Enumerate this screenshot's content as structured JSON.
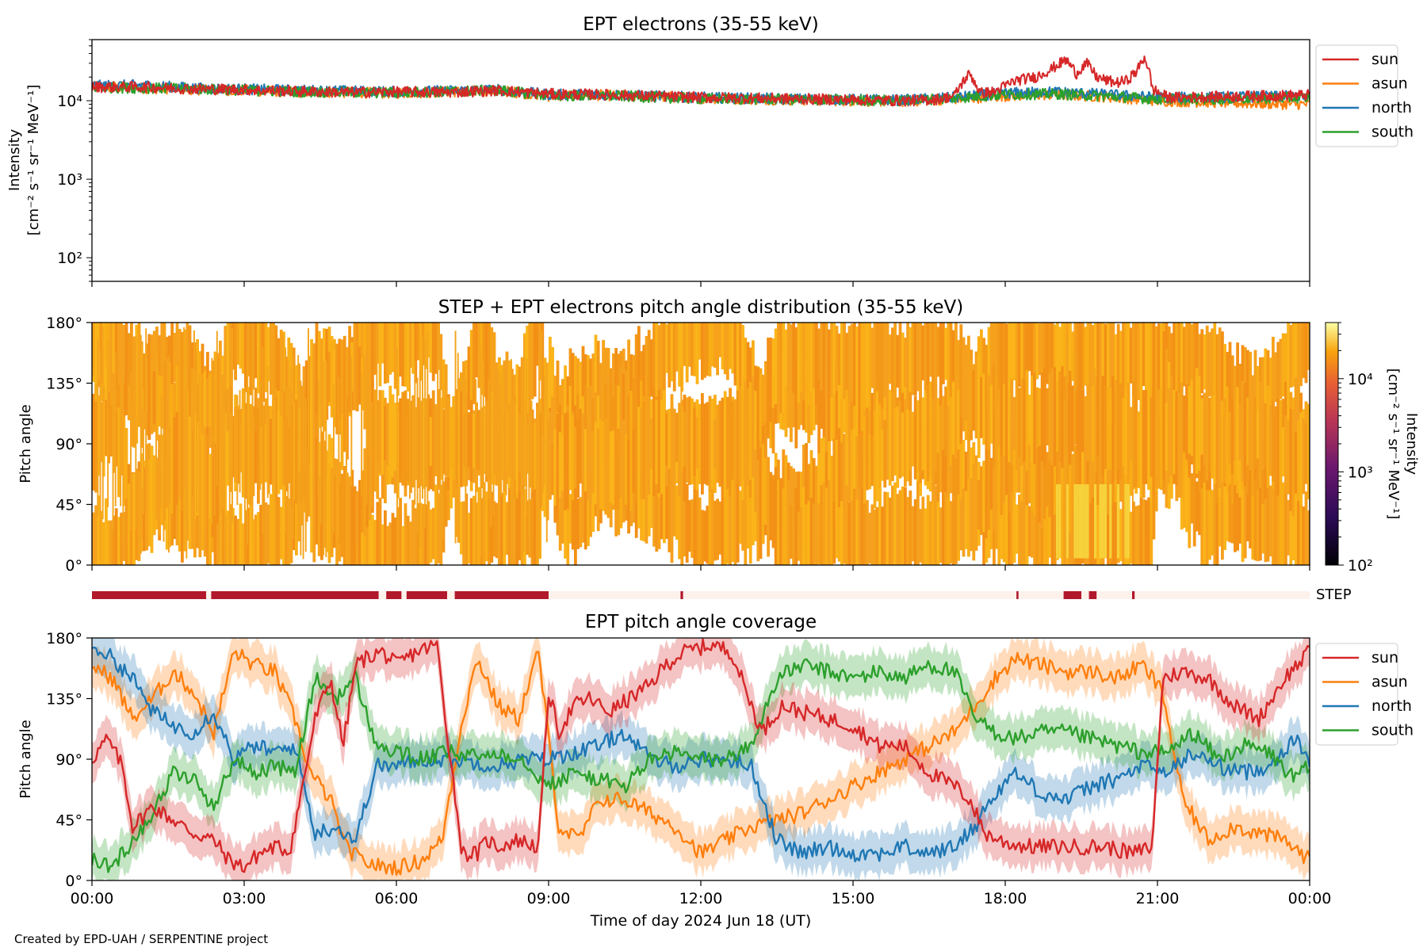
{
  "colors": {
    "sun": "#d62728",
    "asun": "#ff7f0e",
    "north": "#1f77b4",
    "south": "#2ca02c",
    "step_bar": "#b2182b",
    "step_bar_light": "#fdf1ec",
    "pad_main": "#f7a21b",
    "pad_hot": "#f7d23b"
  },
  "footer": {
    "credit": "Created by EPD-UAH / SERPENTINE project"
  },
  "chart_data": [
    {
      "type": "line",
      "title": "EPT electrons (35-55 keV)",
      "xlabel": "",
      "ylabel": [
        "Intensity",
        "[cm⁻² s⁻¹ sr⁻¹ MeV⁻¹]"
      ],
      "yscale": "log",
      "ylim": [
        50,
        60000
      ],
      "yticks": [
        {
          "value": 100,
          "label": "10²"
        },
        {
          "value": 1000,
          "label": "10³"
        },
        {
          "value": 10000,
          "label": "10⁴"
        }
      ],
      "xlim": [
        0,
        24
      ],
      "legend_position": "outside-right-top",
      "series": [
        {
          "name": "sun",
          "x": [
            0,
            1,
            2,
            3,
            4,
            5,
            6,
            7,
            8,
            9,
            10,
            11,
            12,
            13,
            14,
            15,
            16,
            16.6,
            17.0,
            17.3,
            17.5,
            17.8,
            18.2,
            18.6,
            18.9,
            19.2,
            19.4,
            19.6,
            19.8,
            20.0,
            20.2,
            20.4,
            20.6,
            20.75,
            20.9,
            21.2,
            21.5,
            22,
            23,
            24
          ],
          "values": [
            15000,
            15000,
            14200,
            13800,
            13200,
            12800,
            13000,
            12800,
            13500,
            12200,
            12000,
            11500,
            11000,
            10800,
            10500,
            10300,
            10000,
            10300,
            11500,
            22000,
            12500,
            13000,
            18000,
            20000,
            25000,
            33000,
            22000,
            30000,
            20000,
            18000,
            17000,
            18000,
            24000,
            36000,
            14000,
            11000,
            11000,
            11200,
            11500,
            11800
          ]
        },
        {
          "name": "asun",
          "x": [
            0,
            2,
            4,
            6,
            8,
            9,
            10,
            12,
            14,
            16,
            17,
            18,
            19,
            20,
            21,
            22,
            23,
            24
          ],
          "values": [
            15000,
            14000,
            13000,
            12500,
            13500,
            11500,
            11800,
            10800,
            10200,
            9800,
            10500,
            11500,
            12000,
            11200,
            10000,
            9600,
            9200,
            9000
          ]
        },
        {
          "name": "north",
          "x": [
            0,
            1,
            2,
            4,
            6,
            8,
            9,
            10,
            12,
            14,
            16,
            17,
            18,
            19,
            20,
            21,
            22,
            24
          ],
          "values": [
            15500,
            15800,
            14500,
            13600,
            13000,
            13800,
            12000,
            12000,
            11000,
            10500,
            10200,
            11000,
            12500,
            13000,
            12000,
            11000,
            11000,
            11500
          ]
        },
        {
          "name": "south",
          "x": [
            0,
            2,
            4,
            6,
            8,
            9,
            10,
            12,
            14,
            16,
            17,
            18,
            19,
            20,
            21,
            22,
            24
          ],
          "values": [
            14800,
            14200,
            13000,
            12600,
            13600,
            11600,
            11600,
            10600,
            10300,
            10000,
            10800,
            12000,
            12200,
            11400,
            10500,
            10500,
            11000
          ]
        }
      ]
    },
    {
      "type": "heatmap",
      "title": "STEP + EPT electrons pitch angle distribution (35-55 keV)",
      "ylabel": "Pitch angle",
      "ylim": [
        0,
        180
      ],
      "yticks": [
        "0°",
        "45°",
        "90°",
        "135°",
        "180°"
      ],
      "xlim": [
        0,
        24
      ],
      "colorbar": {
        "label": [
          "Intensity",
          "[cm⁻² s⁻¹ sr⁻¹ MeV⁻¹]"
        ],
        "scale": "log",
        "range": [
          100,
          40000
        ],
        "ticks": [
          {
            "value": 100,
            "label": "10²"
          },
          {
            "value": 1000,
            "label": "10³"
          },
          {
            "value": 10000,
            "label": "10⁴"
          }
        ]
      },
      "typical_intensity": 12000
    },
    {
      "type": "timeline",
      "label": "STEP",
      "xlim": [
        0,
        24
      ],
      "active_intervals": [
        [
          0,
          2.25
        ],
        [
          2.35,
          5.65
        ],
        [
          5.8,
          6.1
        ],
        [
          6.2,
          7.0
        ],
        [
          7.15,
          9.0
        ],
        [
          11.6,
          11.65
        ],
        [
          18.22,
          18.26
        ],
        [
          19.15,
          19.5
        ],
        [
          19.65,
          19.8
        ],
        [
          20.5,
          20.55
        ]
      ]
    },
    {
      "type": "line",
      "title": "EPT pitch angle coverage",
      "ylabel": "Pitch angle",
      "xlabel": "Time of day 2024 Jun 18 (UT)",
      "ylim": [
        0,
        180
      ],
      "yticks": [
        "0°",
        "45°",
        "90°",
        "135°",
        "180°"
      ],
      "xlim": [
        0,
        24
      ],
      "xticks": [
        "00:00",
        "03:00",
        "06:00",
        "09:00",
        "12:00",
        "15:00",
        "18:00",
        "21:00",
        "00:00"
      ],
      "legend_position": "outside-right-top",
      "series": [
        {
          "name": "sun",
          "x": [
            0,
            0.3,
            0.6,
            0.8,
            1.2,
            1.6,
            2.0,
            2.4,
            2.7,
            3.0,
            3.3,
            3.6,
            3.9,
            4.1,
            4.4,
            4.7,
            4.95,
            5.2,
            5.4,
            5.7,
            6.0,
            6.4,
            6.8,
            7.0,
            7.3,
            7.6,
            7.8,
            8.0,
            8.4,
            8.8,
            9.0,
            9.2,
            9.5,
            9.8,
            10.2,
            10.6,
            11.0,
            11.3,
            11.7,
            12.2,
            12.6,
            12.9,
            13.2,
            13.6,
            14.0,
            14.5,
            15.0,
            15.5,
            16.0,
            16.5,
            17.0,
            17.3,
            17.6,
            18.0,
            18.5,
            19.0,
            19.5,
            20.0,
            20.5,
            20.9,
            21.1,
            21.5,
            22.0,
            22.5,
            23.0,
            23.5,
            24.0
          ],
          "values": [
            90,
            105,
            85,
            40,
            55,
            45,
            35,
            30,
            15,
            10,
            20,
            25,
            22,
            60,
            120,
            150,
            100,
            160,
            165,
            170,
            160,
            170,
            175,
            110,
            20,
            20,
            30,
            25,
            30,
            25,
            140,
            110,
            130,
            135,
            125,
            135,
            145,
            160,
            170,
            175,
            170,
            140,
            110,
            130,
            125,
            120,
            115,
            100,
            100,
            80,
            70,
            60,
            35,
            28,
            25,
            25,
            25,
            25,
            20,
            25,
            150,
            155,
            150,
            130,
            120,
            150,
            170
          ]
        },
        {
          "name": "asun",
          "x": [
            0,
            0.4,
            0.8,
            1.2,
            1.6,
            2.0,
            2.4,
            2.8,
            3.2,
            3.6,
            4.0,
            4.3,
            4.7,
            5.0,
            5.3,
            5.7,
            6.1,
            6.5,
            6.9,
            7.3,
            7.6,
            8.0,
            8.4,
            8.8,
            9.2,
            9.6,
            10.0,
            10.5,
            11.0,
            11.5,
            12.0,
            12.5,
            13.0,
            13.5,
            14.0,
            14.5,
            15.0,
            15.5,
            16.0,
            16.5,
            17.0,
            17.4,
            17.8,
            18.2,
            18.7,
            19.2,
            19.7,
            20.2,
            20.7,
            21.1,
            21.5,
            22.0,
            22.5,
            23.0,
            23.5,
            24.0
          ],
          "values": [
            160,
            150,
            120,
            135,
            155,
            140,
            110,
            170,
            160,
            155,
            120,
            80,
            60,
            25,
            15,
            10,
            10,
            15,
            30,
            120,
            165,
            130,
            120,
            170,
            40,
            30,
            60,
            60,
            50,
            40,
            20,
            30,
            40,
            45,
            50,
            60,
            70,
            80,
            90,
            100,
            110,
            130,
            150,
            165,
            160,
            155,
            155,
            150,
            160,
            140,
            60,
            30,
            40,
            35,
            30,
            15
          ]
        },
        {
          "name": "north",
          "x": [
            0,
            0.4,
            0.8,
            1.2,
            1.6,
            2.0,
            2.4,
            2.8,
            3.2,
            3.6,
            4.0,
            4.4,
            4.8,
            5.2,
            5.6,
            6.0,
            6.5,
            7.0,
            7.5,
            8.0,
            8.5,
            9.0,
            9.5,
            10.0,
            10.5,
            11.0,
            11.5,
            12.0,
            12.5,
            13.0,
            13.5,
            14.0,
            14.5,
            15.0,
            15.5,
            16.0,
            16.5,
            17.0,
            17.4,
            17.8,
            18.2,
            18.7,
            19.2,
            19.7,
            20.2,
            20.7,
            21.2,
            21.7,
            22.2,
            22.7,
            23.2,
            23.7,
            24.0
          ],
          "values": [
            175,
            165,
            150,
            125,
            115,
            110,
            125,
            90,
            100,
            95,
            100,
            35,
            40,
            30,
            85,
            85,
            90,
            90,
            88,
            85,
            90,
            90,
            95,
            100,
            110,
            90,
            85,
            90,
            90,
            85,
            30,
            20,
            25,
            20,
            20,
            25,
            20,
            25,
            40,
            65,
            80,
            65,
            60,
            70,
            75,
            85,
            80,
            95,
            85,
            80,
            85,
            105,
            90
          ]
        },
        {
          "name": "south",
          "x": [
            0,
            0.4,
            0.8,
            1.2,
            1.6,
            2.0,
            2.4,
            2.8,
            3.2,
            3.6,
            4.0,
            4.4,
            4.8,
            5.2,
            5.6,
            6.0,
            6.5,
            7.0,
            7.5,
            8.0,
            8.5,
            9.0,
            9.5,
            10.0,
            10.5,
            11.0,
            11.5,
            12.0,
            12.5,
            13.0,
            13.5,
            14.0,
            14.5,
            15.0,
            15.5,
            16.0,
            16.5,
            17.0,
            17.4,
            17.8,
            18.2,
            18.7,
            19.2,
            19.7,
            20.2,
            20.7,
            21.2,
            21.7,
            22.2,
            22.7,
            23.2,
            23.7,
            24.0
          ],
          "values": [
            15,
            10,
            30,
            50,
            80,
            75,
            55,
            90,
            80,
            85,
            80,
            150,
            135,
            150,
            100,
            95,
            90,
            95,
            92,
            95,
            90,
            70,
            80,
            75,
            70,
            90,
            95,
            90,
            90,
            100,
            150,
            160,
            155,
            150,
            155,
            150,
            160,
            155,
            120,
            110,
            105,
            110,
            110,
            105,
            100,
            95,
            95,
            110,
            90,
            100,
            95,
            75,
            85
          ]
        }
      ]
    }
  ]
}
